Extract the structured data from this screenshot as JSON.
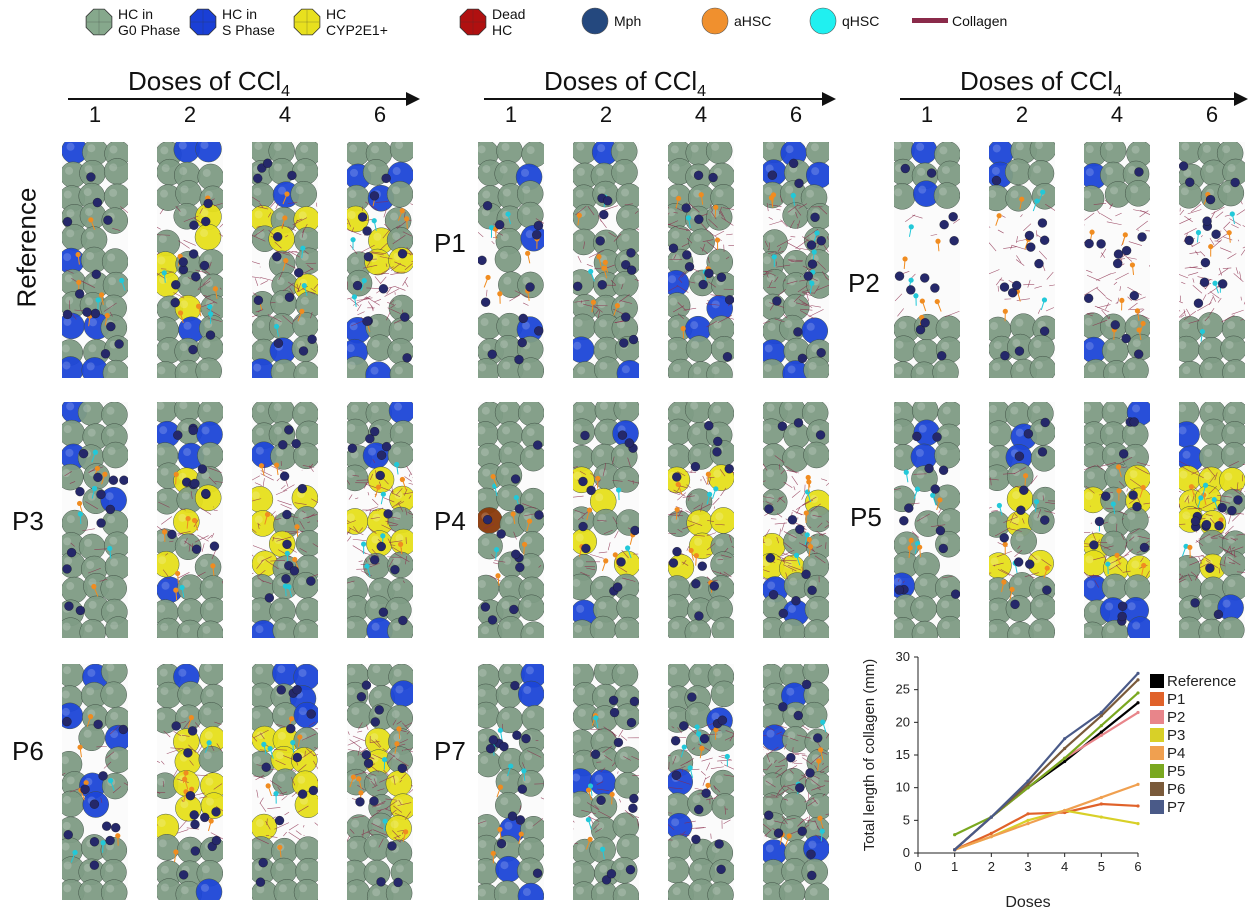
{
  "legend": [
    {
      "label": "HC in\nG0 Phase",
      "icon": "hc-g0-icon",
      "color": "#86a88c"
    },
    {
      "label": "HC in\nS Phase",
      "icon": "hc-s-icon",
      "color": "#1a3fd6"
    },
    {
      "label": "HC\nCYP2E1+",
      "icon": "hc-cyp-icon",
      "color": "#e8e01e"
    },
    {
      "label": "Dead\nHC",
      "icon": "dead-hc-icon",
      "color": "#b01010"
    },
    {
      "label": "Mph",
      "icon": "mph-icon",
      "color": "#24487e"
    },
    {
      "label": "aHSC",
      "icon": "ahsc-icon",
      "color": "#f0902e"
    },
    {
      "label": "qHSC",
      "icon": "qhsc-icon",
      "color": "#20f0f0"
    },
    {
      "label": "Collagen",
      "icon": "collagen-icon",
      "color": "#8a2a4a"
    }
  ],
  "header": {
    "title": "Doses of CCl",
    "subscript": "4",
    "doses": [
      "1",
      "2",
      "4",
      "6"
    ]
  },
  "rows": [
    "Reference",
    "P1",
    "P2",
    "P3",
    "P4",
    "P5",
    "P6",
    "P7"
  ],
  "colors": {
    "g0": "#7f9c85",
    "s": "#1d46d8",
    "cyp": "#e6e01c",
    "dead": "#8a3a0a",
    "mph": "#25286a",
    "ahsc": "#f08c20",
    "qhsc": "#22c8d8",
    "collagen": "#8a2a4a"
  },
  "chart_data": {
    "type": "line",
    "x": [
      1,
      2,
      3,
      4,
      5,
      6
    ],
    "xlabel": "Doses",
    "ylabel": "Total length of collagen (mm)",
    "xlim": [
      0,
      6
    ],
    "ylim": [
      0,
      30
    ],
    "xticks": [
      "0",
      "1",
      "2",
      "3",
      "4",
      "5",
      "6"
    ],
    "yticks": [
      "0",
      "5",
      "10",
      "15",
      "20",
      "25",
      "30"
    ],
    "legend_position": "right",
    "series": [
      {
        "name": "Reference",
        "color": "#000000",
        "values": [
          0.5,
          5.5,
          10,
          14,
          18.5,
          23
        ]
      },
      {
        "name": "P1",
        "color": "#e0622a",
        "values": [
          0.5,
          3,
          6,
          6.2,
          7.5,
          7.2
        ]
      },
      {
        "name": "P2",
        "color": "#e8858a",
        "values": [
          0.5,
          5.5,
          10,
          14.5,
          18,
          21.5
        ]
      },
      {
        "name": "P3",
        "color": "#d8d028",
        "values": [
          0.5,
          2.5,
          5,
          6.5,
          5.5,
          4.5
        ]
      },
      {
        "name": "P4",
        "color": "#f0a050",
        "values": [
          0.5,
          2.5,
          4.5,
          6.5,
          8.5,
          10.5
        ]
      },
      {
        "name": "P5",
        "color": "#7aa820",
        "values": [
          2.8,
          5.5,
          10,
          14.5,
          19.5,
          24.5
        ]
      },
      {
        "name": "P6",
        "color": "#7a5a3a",
        "values": [
          0.5,
          5.5,
          10.5,
          16,
          21,
          26.5
        ]
      },
      {
        "name": "P7",
        "color": "#4a5a88",
        "values": [
          0.5,
          5.5,
          11,
          17.5,
          21.5,
          27.5
        ]
      }
    ]
  }
}
